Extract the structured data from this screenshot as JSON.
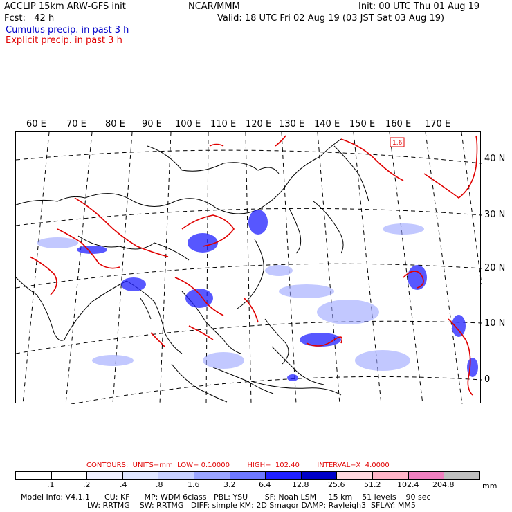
{
  "header": {
    "title_left": "ACCLIP 15km ARW-GFS init",
    "title_mid": "NCAR/MMM",
    "init": "Init: 00 UTC Thu 01 Aug 19",
    "fcst": "Fcst:   42 h",
    "valid": "Valid: 18 UTC Fri 02 Aug 19 (03 JST Sat 03 Aug 19)",
    "cumulus_label": "Cumulus precip. in past 3 h",
    "explicit_label": "Explicit precip. in past 3 h",
    "cumulus_color": "#0000c8",
    "explicit_color": "#e00000"
  },
  "map": {
    "longitude_labels": [
      "60 E",
      "70 E",
      "80 E",
      "90 E",
      "100 E",
      "110 E",
      "120 E",
      "130 E",
      "140 E",
      "150 E",
      "160 E",
      "170 E"
    ],
    "latitude_labels": [
      "40 N",
      "30 N",
      "20 N",
      "10 N",
      "0"
    ],
    "contour_box_label": "1.6"
  },
  "legend": {
    "contours_text": "CONTOURS:  UNITS=mm  LOW= 0.10000        HIGH=  102.40        INTERVAL=X  4.0000",
    "scale_colors": [
      "#ffffff",
      "#ffffff",
      "#f0f0ff",
      "#e0e6ff",
      "#c8d0ff",
      "#9aa4ff",
      "#6e78ff",
      "#2020ff",
      "#0000c8",
      "#ffd8e0",
      "#ffb4c8",
      "#f080c0",
      "#c0c0c0",
      "#404040",
      "#c8a0f0"
    ],
    "scale_labels": [
      ".1",
      ".2",
      ".4",
      ".8",
      "1.6",
      "3.2",
      "6.4",
      "12.8",
      "25.6",
      "51.2",
      "102.4",
      "204.8"
    ],
    "unit": "mm"
  },
  "model_info": {
    "line1": "Model Info: V4.1.1      CU: KF      MP: WDM 6class   PBL: YSU       SF: Noah LSM     15 km    51 levels    90 sec",
    "line2": "LW: RRTMG    SW: RRTMG   DIFF: simple KM: 2D Smagor DAMP: Rayleigh3  SFLAY: MM5"
  }
}
